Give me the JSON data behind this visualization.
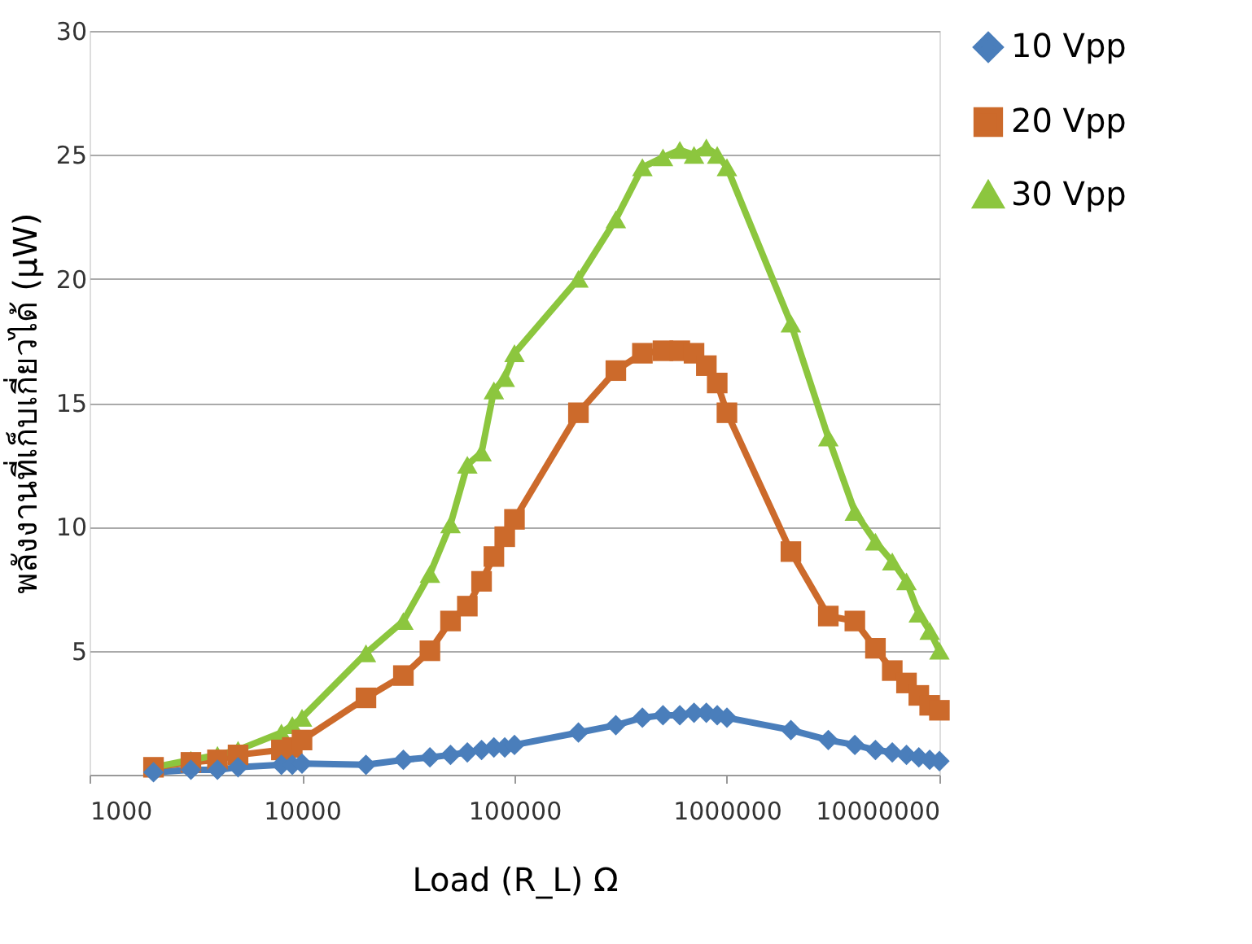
{
  "chart_data": {
    "type": "line",
    "xlabel": "Load (R_L) Ω",
    "ylabel": "พลังงานที่เก็บเกี่ยวได้ (μW)",
    "x": [
      2000,
      3000,
      4000,
      5000,
      8000,
      9000,
      10000,
      20000,
      30000,
      40000,
      50000,
      60000,
      70000,
      80000,
      90000,
      100000,
      200000,
      300000,
      400000,
      500000,
      600000,
      700000,
      800000,
      900000,
      1000000,
      2000000,
      3000000,
      4000000,
      5000000,
      6000000,
      7000000,
      8000000,
      9000000,
      10000000
    ],
    "series": [
      {
        "name": "10 Vpp",
        "color": "#4a7ebb",
        "marker": "diamond",
        "values": [
          0.1,
          0.2,
          0.2,
          0.3,
          0.4,
          0.4,
          0.45,
          0.4,
          0.6,
          0.7,
          0.8,
          0.9,
          1.0,
          1.1,
          1.1,
          1.2,
          1.7,
          2.0,
          2.3,
          2.4,
          2.4,
          2.5,
          2.5,
          2.4,
          2.3,
          1.8,
          1.4,
          1.2,
          1.0,
          0.9,
          0.8,
          0.7,
          0.6,
          0.55
        ]
      },
      {
        "name": "20 Vpp",
        "color": "#cc6a2b",
        "marker": "square",
        "values": [
          0.3,
          0.5,
          0.6,
          0.8,
          1.0,
          1.1,
          1.4,
          3.1,
          4.0,
          5.0,
          6.2,
          6.8,
          7.8,
          8.8,
          9.6,
          10.3,
          14.6,
          16.3,
          17.0,
          17.1,
          17.1,
          17.0,
          16.5,
          15.8,
          14.6,
          9.0,
          6.4,
          6.2,
          5.1,
          4.2,
          3.7,
          3.2,
          2.8,
          2.6
        ]
      },
      {
        "name": "30 Vpp",
        "color": "#8cc63e",
        "marker": "triangle",
        "values": [
          0.3,
          0.6,
          0.8,
          1.0,
          1.7,
          2.0,
          2.3,
          4.9,
          6.2,
          8.1,
          10.1,
          12.5,
          13.0,
          15.5,
          16.0,
          17.0,
          20.0,
          22.4,
          24.5,
          24.9,
          25.2,
          25.0,
          25.3,
          25.0,
          24.5,
          18.2,
          13.6,
          10.6,
          9.4,
          8.6,
          7.8,
          6.5,
          5.8,
          5.0
        ]
      }
    ],
    "log": "x",
    "xlim": [
      1000,
      10000000
    ],
    "xticks": [
      1000,
      10000,
      100000,
      1000000,
      10000000
    ],
    "ylim": [
      0,
      30
    ],
    "yticks": [
      {
        "value": 0,
        "label": null
      },
      5,
      10,
      15,
      20,
      25,
      30
    ],
    "grid": "y",
    "legend": "right",
    "line_style": "solid"
  }
}
